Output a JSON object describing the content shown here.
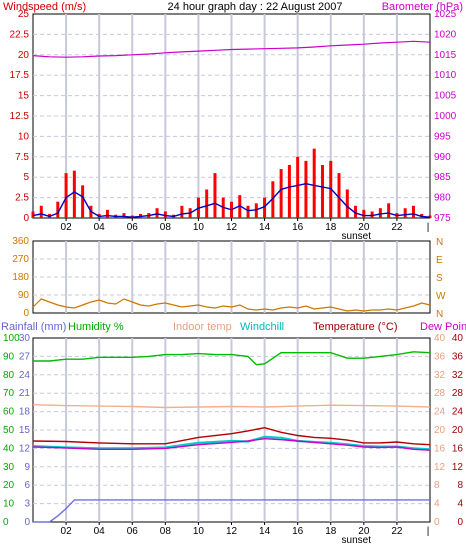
{
  "header": {
    "left_label": "Windspeed (m/s)",
    "title": "24 hour graph day : 22 August 2007",
    "right_label": "Barometer (hPa)"
  },
  "x_axis": {
    "tick_labels": [
      "02",
      "04",
      "06",
      "08",
      "10",
      "12",
      "14",
      "16",
      "18",
      "20",
      "22"
    ],
    "sunset_label": "sunset"
  },
  "colors": {
    "wind_gust": "#ff0000",
    "wind_avg": "#0000c0",
    "barometer": "#cc00cc",
    "wind_dir": "#cc7700",
    "rain": "#7070dd",
    "humidity": "#00bb00",
    "indoor": "#f0b090",
    "windchill": "#00cccc",
    "temperature": "#b00000",
    "dewpoint": "#cc00cc"
  },
  "chart_data": [
    {
      "type": "line",
      "name": "wind-barometer",
      "x_range": [
        0,
        24
      ],
      "left_axis": {
        "label": "Windspeed (m/s)",
        "ticks": [
          0,
          2.5,
          5,
          7.5,
          10,
          12.5,
          15,
          17.5,
          20,
          22.5,
          25
        ],
        "tick_labels": [
          "0",
          "2.5",
          "5",
          "7.5",
          "10",
          "12.5",
          "15",
          "17.5",
          "20",
          "22.5",
          "25"
        ],
        "range": [
          0,
          25
        ]
      },
      "right_axis": {
        "label": "Barometer (hPa)",
        "ticks": [
          975,
          980,
          985,
          990,
          995,
          1000,
          1005,
          1010,
          1015,
          1020,
          1025
        ],
        "tick_labels": [
          "975",
          "980",
          "985",
          "990",
          "995",
          "1000",
          "1005",
          "1010",
          "1015",
          "1020",
          "1025"
        ],
        "range": [
          975,
          1025
        ]
      },
      "series": [
        {
          "name": "Barometer",
          "axis": "right",
          "x": [
            0,
            1,
            2,
            3,
            4,
            5,
            6,
            7,
            8,
            9,
            10,
            11,
            12,
            13,
            14,
            15,
            16,
            17,
            18,
            19,
            20,
            21,
            22,
            23,
            24
          ],
          "y": [
            1014.8,
            1014.5,
            1014.4,
            1014.5,
            1014.7,
            1014.8,
            1015.0,
            1015.2,
            1015.5,
            1015.7,
            1015.9,
            1016.1,
            1016.3,
            1016.4,
            1016.5,
            1016.6,
            1016.7,
            1016.9,
            1017.2,
            1017.4,
            1017.6,
            1017.9,
            1018.1,
            1018.3,
            1018.1
          ]
        },
        {
          "name": "Wind gust",
          "axis": "left",
          "x": [
            0,
            0.5,
            1,
            1.5,
            2,
            2.5,
            3,
            3.5,
            4,
            4.5,
            5,
            5.5,
            6,
            6.5,
            7,
            7.5,
            8,
            8.5,
            9,
            9.5,
            10,
            10.5,
            11,
            11.5,
            12,
            12.5,
            13,
            13.5,
            14,
            14.5,
            15,
            15.5,
            16,
            16.5,
            17,
            17.5,
            18,
            18.5,
            19,
            19.5,
            20,
            20.5,
            21,
            21.5,
            22,
            22.5,
            23,
            23.5,
            24
          ],
          "y": [
            0.8,
            1.5,
            0.5,
            2.0,
            5.5,
            5.8,
            4.0,
            1.5,
            0.5,
            1.0,
            0.4,
            0.6,
            0.3,
            0.5,
            0.6,
            1.2,
            0.8,
            0.4,
            1.5,
            1.2,
            2.5,
            3.5,
            5.5,
            2.5,
            2.0,
            2.8,
            1.5,
            1.8,
            2.5,
            4.5,
            6.0,
            6.5,
            7.5,
            7.0,
            8.5,
            6.5,
            7.0,
            5.5,
            3.5,
            1.5,
            1.0,
            0.8,
            1.2,
            1.8,
            0.6,
            1.2,
            1.5,
            0.5,
            0.3
          ]
        },
        {
          "name": "Wind average",
          "axis": "left",
          "x": [
            0,
            0.5,
            1,
            1.5,
            2,
            2.5,
            3,
            3.5,
            4,
            4.5,
            5,
            5.5,
            6,
            6.5,
            7,
            7.5,
            8,
            8.5,
            9,
            9.5,
            10,
            10.5,
            11,
            11.5,
            12,
            12.5,
            13,
            13.5,
            14,
            14.5,
            15,
            15.5,
            16,
            16.5,
            17,
            17.5,
            18,
            18.5,
            19,
            19.5,
            20,
            20.5,
            21,
            21.5,
            22,
            22.5,
            23,
            23.5,
            24
          ],
          "y": [
            0.3,
            0.5,
            0.2,
            0.6,
            2.5,
            3.2,
            2.6,
            0.8,
            0.2,
            0.3,
            0.2,
            0.2,
            0.1,
            0.2,
            0.3,
            0.5,
            0.3,
            0.2,
            0.5,
            0.6,
            1.2,
            1.5,
            1.8,
            1.3,
            1.0,
            1.5,
            0.9,
            1.0,
            1.4,
            2.4,
            3.5,
            3.8,
            4.0,
            4.2,
            4.0,
            3.8,
            3.6,
            2.5,
            1.4,
            0.6,
            0.3,
            0.3,
            0.5,
            0.6,
            0.3,
            0.4,
            0.5,
            0.2,
            0.1
          ]
        }
      ],
      "sunset_x": 19.3
    },
    {
      "type": "line",
      "name": "wind-direction",
      "x_range": [
        0,
        24
      ],
      "left_axis": {
        "ticks": [
          0,
          90,
          180,
          270,
          360
        ],
        "tick_labels": [
          "0",
          "90",
          "180",
          "270",
          "360"
        ],
        "range": [
          0,
          360
        ]
      },
      "right_axis": {
        "tick_labels": [
          "N",
          "W",
          "S",
          "E",
          "N"
        ]
      },
      "series": [
        {
          "name": "Wind direction",
          "x": [
            0,
            0.5,
            1,
            1.5,
            2,
            2.5,
            3,
            3.5,
            4,
            4.5,
            5,
            5.5,
            6,
            6.5,
            7,
            7.5,
            8,
            8.5,
            9,
            9.5,
            10,
            10.5,
            11,
            11.5,
            12,
            12.5,
            13,
            13.5,
            14,
            14.5,
            15,
            15.5,
            16,
            16.5,
            17,
            17.5,
            18,
            18.5,
            19,
            19.5,
            20,
            20.5,
            21,
            21.5,
            22,
            22.5,
            23,
            23.5,
            24
          ],
          "y": [
            30,
            70,
            55,
            40,
            30,
            25,
            40,
            55,
            65,
            50,
            45,
            70,
            55,
            40,
            35,
            45,
            50,
            40,
            30,
            35,
            40,
            30,
            25,
            35,
            30,
            40,
            20,
            15,
            20,
            15,
            25,
            30,
            25,
            35,
            20,
            25,
            30,
            20,
            10,
            15,
            10,
            15,
            15,
            20,
            15,
            25,
            35,
            50,
            40
          ]
        }
      ],
      "sunset_x": 19.3
    },
    {
      "type": "line",
      "name": "rain-humidity-temperature",
      "x_range": [
        0,
        24
      ],
      "legend": [
        "Rainfall (mm)",
        "Humidity %",
        "Indoor temp",
        "Windchill",
        "Temperature (°C)",
        "Dew Point"
      ],
      "rain_axis": {
        "ticks": [
          0,
          3,
          6,
          9,
          12,
          15,
          18,
          21,
          24,
          27,
          30
        ],
        "tick_labels": [
          "0",
          "3",
          "6",
          "9",
          "12",
          "15",
          "18",
          "21",
          "24",
          "27",
          "30"
        ],
        "range": [
          0,
          30
        ]
      },
      "humidity_axis": {
        "ticks": [
          0,
          10,
          20,
          30,
          40,
          50,
          60,
          70,
          80,
          90,
          100
        ],
        "tick_labels": [
          "0",
          "10",
          "20",
          "30",
          "40",
          "50",
          "60",
          "70",
          "80",
          "90",
          "100"
        ],
        "range": [
          0,
          100
        ]
      },
      "temp_axis": {
        "ticks": [
          0,
          4,
          8,
          12,
          16,
          20,
          24,
          28,
          32,
          36,
          40
        ],
        "tick_labels": [
          "0",
          "4",
          "8",
          "12",
          "16",
          "20",
          "24",
          "28",
          "32",
          "36",
          "40"
        ],
        "range": [
          0,
          40
        ]
      },
      "series": [
        {
          "name": "Humidity %",
          "axis": "humidity",
          "x": [
            0,
            1,
            2,
            3,
            4,
            5,
            6,
            7,
            8,
            9,
            10,
            11,
            12,
            13,
            13.5,
            14,
            15,
            16,
            17,
            18,
            19,
            20,
            21,
            22,
            23,
            24
          ],
          "y": [
            87.5,
            87.5,
            88.5,
            88.5,
            89.5,
            89.5,
            89.5,
            90,
            91,
            91,
            91.5,
            91,
            91,
            90,
            85.5,
            86,
            92,
            92,
            92,
            92,
            89,
            89,
            90,
            91,
            92.5,
            92
          ]
        },
        {
          "name": "Indoor temp",
          "axis": "temp",
          "x": [
            0,
            2,
            4,
            6,
            8,
            10,
            12,
            14,
            16,
            18,
            20,
            22,
            24
          ],
          "y": [
            25.5,
            25.3,
            25.2,
            25.1,
            24.9,
            25.0,
            25.1,
            25.0,
            25.2,
            25.4,
            25.3,
            25.2,
            25.0
          ]
        },
        {
          "name": "Windchill",
          "axis": "temp",
          "x": [
            0,
            2,
            4,
            6,
            8,
            10,
            12,
            13,
            14,
            15,
            16,
            17,
            18,
            19,
            20,
            21,
            22,
            23,
            24
          ],
          "y": [
            16.5,
            16.2,
            16.0,
            16.0,
            16.2,
            17.2,
            17.6,
            17.5,
            18.5,
            18.3,
            17.6,
            17.4,
            17.2,
            16.9,
            16.5,
            16.4,
            16.4,
            16.0,
            15.8
          ]
        },
        {
          "name": "Temperature (°C)",
          "axis": "temp",
          "x": [
            0,
            2,
            4,
            6,
            8,
            10,
            12,
            13,
            14,
            15,
            16,
            17,
            18,
            19,
            20,
            21,
            22,
            23,
            24
          ],
          "y": [
            17.6,
            17.5,
            17.2,
            17.0,
            17.0,
            18.4,
            19.2,
            19.8,
            20.5,
            19.5,
            18.8,
            18.4,
            18.2,
            17.8,
            17.2,
            17.2,
            17.4,
            17.0,
            16.8
          ]
        },
        {
          "name": "Dew Point",
          "axis": "temp",
          "x": [
            0,
            2,
            4,
            6,
            8,
            10,
            12,
            13,
            14,
            15,
            16,
            17,
            18,
            19,
            20,
            21,
            22,
            23,
            24
          ],
          "y": [
            16.3,
            16.1,
            15.8,
            15.8,
            16.0,
            16.8,
            17.3,
            17.6,
            18.1,
            17.9,
            17.6,
            17.3,
            17.0,
            16.7,
            16.3,
            16.2,
            16.3,
            15.8,
            15.6
          ]
        },
        {
          "name": "Rainfall (mm)",
          "axis": "rain",
          "x": [
            0,
            1,
            1.5,
            2,
            2.5,
            3,
            24
          ],
          "y": [
            0,
            0,
            1.0,
            2.2,
            3.6,
            3.6,
            3.6
          ]
        }
      ],
      "sunset_x": 19.3
    }
  ]
}
